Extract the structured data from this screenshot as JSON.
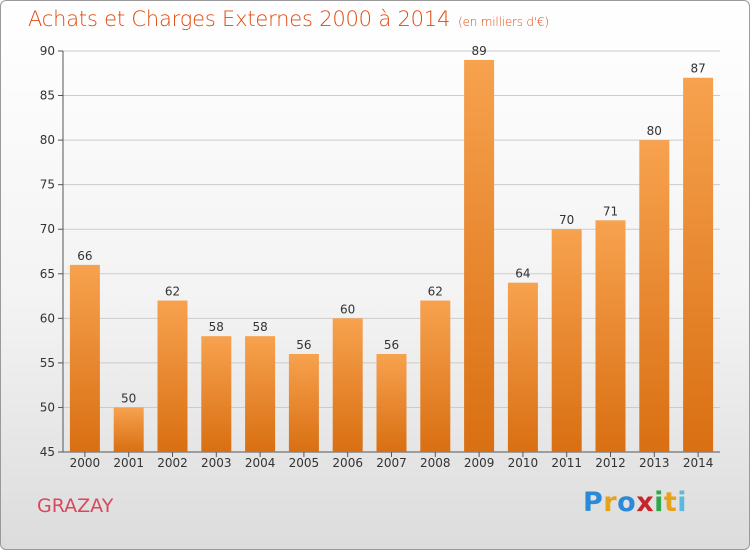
{
  "header": {
    "title": "Achats et Charges Externes 2000 à 2014",
    "unit": "(en milliers d'€)"
  },
  "footer": {
    "commune": "GRAZAY",
    "logo_letters": [
      "P",
      "r",
      "o",
      "x",
      "i",
      "t",
      "i"
    ]
  },
  "colors": {
    "bar_top": "#f7a24f",
    "bar_bottom": "#d96f12",
    "title": "#e04a10",
    "commune": "#d9485a",
    "gridline": "#cccccc"
  },
  "chart_data": {
    "type": "bar",
    "title": "Achats et Charges Externes 2000 à 2014",
    "subtitle": "(en milliers d'€)",
    "xlabel": "",
    "ylabel": "",
    "categories": [
      "2000",
      "2001",
      "2002",
      "2003",
      "2004",
      "2005",
      "2006",
      "2007",
      "2008",
      "2009",
      "2010",
      "2011",
      "2012",
      "2013",
      "2014"
    ],
    "values": [
      66,
      50,
      62,
      58,
      58,
      56,
      60,
      56,
      62,
      89,
      64,
      70,
      71,
      80,
      87
    ],
    "ylim": [
      45,
      90
    ],
    "yticks": [
      45,
      50,
      55,
      60,
      65,
      70,
      75,
      80,
      85,
      90
    ],
    "grid": true,
    "legend": "none"
  }
}
